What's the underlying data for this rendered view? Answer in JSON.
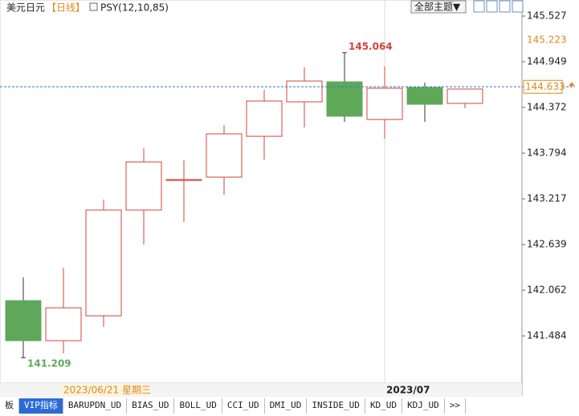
{
  "chart_data": {
    "type": "candlestick",
    "symbol": "美元日元",
    "period": "【日线】",
    "indicator": "PSY(12,10,85)",
    "open": [
      141.93,
      141.424,
      141.738,
      143.075,
      143.46,
      143.491,
      144.007,
      144.443,
      144.696,
      144.22,
      144.625,
      144.423
    ],
    "high": [
      142.224,
      142.346,
      143.207,
      143.855,
      143.703,
      144.149,
      144.595,
      144.879,
      145.064,
      144.889,
      144.686,
      144.605
    ],
    "low": [
      141.209,
      141.262,
      141.596,
      142.639,
      142.923,
      143.268,
      143.713,
      144.119,
      144.19,
      143.977,
      144.19,
      144.362
    ],
    "close": [
      141.424,
      141.839,
      143.075,
      143.683,
      143.46,
      144.038,
      144.453,
      144.706,
      144.261,
      144.615,
      144.412,
      144.605
    ],
    "up_color": "#d0453a",
    "down_color": "#5fa85a",
    "ylim": [
      140.887,
      145.73
    ],
    "yticks": [
      145.527,
      144.949,
      144.372,
      143.794,
      143.217,
      142.639,
      142.062,
      141.484
    ],
    "last_price": 144.633,
    "marker_price": 145.223,
    "max_label_index": 8,
    "min_label_index": 0,
    "cursor_date": "2023/06/21 星期三",
    "month_label": "2023/07"
  },
  "toolbar": {
    "theme_button": "全部主题▼"
  },
  "tabs": [
    "板",
    "VIP指标",
    "BARUPDN_UD",
    "BIAS_UD",
    "BOLL_UD",
    "CCI_UD",
    "DMI_UD",
    "INSIDE_UD",
    "KD_UD",
    "KDJ_UD",
    ">>"
  ]
}
